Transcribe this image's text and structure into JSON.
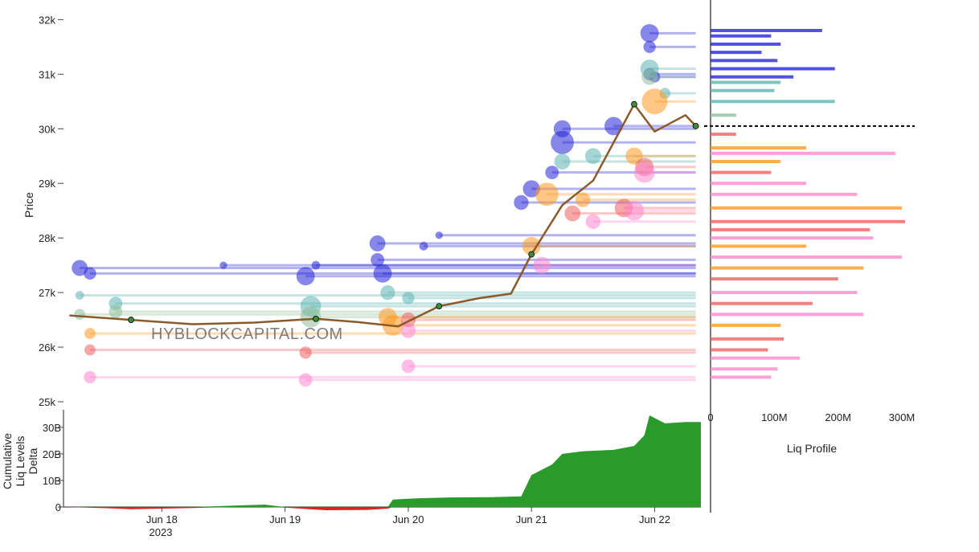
{
  "watermark": "HYBLOCKCAPITAL.COM",
  "colors": {
    "high_leverage_short": "#2626d9",
    "mid_leverage_short": "#5fb3b3",
    "low_leverage_short": "#8fbf9a",
    "low_leverage_long": "#ff9a1f",
    "mid_leverage_long": "#f06060",
    "high_leverage_long": "#ff88d0",
    "cumulative_positive": "#2a9a2a",
    "cumulative_negative": "#e02020",
    "price_line": "#8b5a2b",
    "current_price_marker": "#000000"
  },
  "chart_data": [
    {
      "type": "scatter",
      "ylabel": "Price",
      "xlim": [
        "2023-06-17 05:00",
        "2023-06-22 09:00"
      ],
      "ylim": [
        25000,
        32300
      ],
      "y_ticks": [
        "25k",
        "26k",
        "27k",
        "28k",
        "29k",
        "30k",
        "31k",
        "32k"
      ],
      "y_tick_values": [
        25000,
        26000,
        27000,
        28000,
        29000,
        30000,
        31000,
        32000
      ],
      "price_series": {
        "x": [
          "2023-06-17 06:00",
          "2023-06-17 18:00",
          "2023-06-18 06:00",
          "2023-06-18 18:00",
          "2023-06-19 06:00",
          "2023-06-19 14:00",
          "2023-06-19 22:00",
          "2023-06-20 06:00",
          "2023-06-20 14:00",
          "2023-06-20 20:00",
          "2023-06-21 00:00",
          "2023-06-21 06:00",
          "2023-06-21 12:00",
          "2023-06-21 20:00",
          "2023-06-22 00:00",
          "2023-06-22 06:00",
          "2023-06-22 08:00"
        ],
        "y": [
          26580,
          26500,
          26420,
          26450,
          26520,
          26460,
          26380,
          26750,
          26900,
          26980,
          27700,
          28600,
          29050,
          30450,
          29950,
          30250,
          30050
        ]
      },
      "current_price": 30050,
      "liquidation_levels": [
        {
          "group": "high_leverage_short",
          "x_start": "2023-06-17 08:00",
          "price": 27450,
          "size": 10
        },
        {
          "group": "high_leverage_short",
          "x_start": "2023-06-17 10:00",
          "price": 27350,
          "size": 7
        },
        {
          "group": "high_leverage_short",
          "x_start": "2023-06-19 04:00",
          "price": 27300,
          "size": 12
        },
        {
          "group": "high_leverage_short",
          "x_start": "2023-06-19 06:00",
          "price": 27500,
          "size": 4
        },
        {
          "group": "high_leverage_short",
          "x_start": "2023-06-18 12:00",
          "price": 27500,
          "size": 3
        },
        {
          "group": "high_leverage_short",
          "x_start": "2023-06-19 18:00",
          "price": 27900,
          "size": 10
        },
        {
          "group": "high_leverage_short",
          "x_start": "2023-06-19 18:00",
          "price": 27600,
          "size": 8
        },
        {
          "group": "high_leverage_short",
          "x_start": "2023-06-19 19:00",
          "price": 27350,
          "size": 12
        },
        {
          "group": "high_leverage_short",
          "x_start": "2023-06-20 06:00",
          "price": 28050,
          "size": 3
        },
        {
          "group": "high_leverage_short",
          "x_start": "2023-06-20 03:00",
          "price": 27850,
          "size": 4
        },
        {
          "group": "high_leverage_short",
          "x_start": "2023-06-20 22:00",
          "price": 28650,
          "size": 9
        },
        {
          "group": "high_leverage_short",
          "x_start": "2023-06-21 00:00",
          "price": 28900,
          "size": 11
        },
        {
          "group": "high_leverage_short",
          "x_start": "2023-06-21 04:00",
          "price": 29200,
          "size": 8
        },
        {
          "group": "high_leverage_short",
          "x_start": "2023-06-21 06:00",
          "price": 30000,
          "size": 11
        },
        {
          "group": "high_leverage_short",
          "x_start": "2023-06-21 06:00",
          "price": 29750,
          "size": 16
        },
        {
          "group": "high_leverage_short",
          "x_start": "2023-06-21 16:00",
          "price": 30050,
          "size": 12
        },
        {
          "group": "high_leverage_short",
          "x_start": "2023-06-21 23:00",
          "price": 31750,
          "size": 12
        },
        {
          "group": "high_leverage_short",
          "x_start": "2023-06-21 23:00",
          "price": 31500,
          "size": 7
        },
        {
          "group": "high_leverage_short",
          "x_start": "2023-06-21 23:00",
          "price": 31000,
          "size": 7
        },
        {
          "group": "high_leverage_short",
          "x_start": "2023-06-22 00:00",
          "price": 30950,
          "size": 6
        },
        {
          "group": "mid_leverage_short",
          "x_start": "2023-06-17 08:00",
          "price": 26950,
          "size": 4
        },
        {
          "group": "mid_leverage_short",
          "x_start": "2023-06-17 15:00",
          "price": 26800,
          "size": 8
        },
        {
          "group": "mid_leverage_short",
          "x_start": "2023-06-19 05:00",
          "price": 26750,
          "size": 14
        },
        {
          "group": "mid_leverage_short",
          "x_start": "2023-06-19 20:00",
          "price": 27000,
          "size": 9
        },
        {
          "group": "mid_leverage_short",
          "x_start": "2023-06-20 00:00",
          "price": 26900,
          "size": 7
        },
        {
          "group": "mid_leverage_short",
          "x_start": "2023-06-21 06:00",
          "price": 29400,
          "size": 10
        },
        {
          "group": "mid_leverage_short",
          "x_start": "2023-06-21 12:00",
          "price": 29500,
          "size": 10
        },
        {
          "group": "mid_leverage_short",
          "x_start": "2023-06-21 23:00",
          "price": 31100,
          "size": 12
        },
        {
          "group": "mid_leverage_short",
          "x_start": "2023-06-22 02:00",
          "price": 30650,
          "size": 6
        },
        {
          "group": "low_leverage_short",
          "x_start": "2023-06-17 08:00",
          "price": 26600,
          "size": 6
        },
        {
          "group": "low_leverage_short",
          "x_start": "2023-06-17 15:00",
          "price": 26650,
          "size": 8
        },
        {
          "group": "low_leverage_short",
          "x_start": "2023-06-19 05:00",
          "price": 26550,
          "size": 14
        },
        {
          "group": "low_leverage_short",
          "x_start": "2023-06-21 23:00",
          "price": 30950,
          "size": 10
        },
        {
          "group": "low_leverage_long",
          "x_start": "2023-06-17 10:00",
          "price": 26250,
          "size": 6
        },
        {
          "group": "low_leverage_long",
          "x_start": "2023-06-19 20:00",
          "price": 26550,
          "size": 12
        },
        {
          "group": "low_leverage_long",
          "x_start": "2023-06-19 21:00",
          "price": 26400,
          "size": 14
        },
        {
          "group": "low_leverage_long",
          "x_start": "2023-06-21 00:00",
          "price": 27850,
          "size": 12
        },
        {
          "group": "low_leverage_long",
          "x_start": "2023-06-21 03:00",
          "price": 28800,
          "size": 16
        },
        {
          "group": "low_leverage_long",
          "x_start": "2023-06-21 10:00",
          "price": 28700,
          "size": 9
        },
        {
          "group": "low_leverage_long",
          "x_start": "2023-06-21 20:00",
          "price": 29500,
          "size": 11
        },
        {
          "group": "low_leverage_long",
          "x_start": "2023-06-22 00:00",
          "price": 30500,
          "size": 18
        },
        {
          "group": "mid_leverage_long",
          "x_start": "2023-06-17 10:00",
          "price": 25950,
          "size": 6
        },
        {
          "group": "mid_leverage_long",
          "x_start": "2023-06-19 04:00",
          "price": 25900,
          "size": 7
        },
        {
          "group": "mid_leverage_long",
          "x_start": "2023-06-20 00:00",
          "price": 26500,
          "size": 9
        },
        {
          "group": "mid_leverage_long",
          "x_start": "2023-06-21 08:00",
          "price": 28450,
          "size": 10
        },
        {
          "group": "mid_leverage_long",
          "x_start": "2023-06-21 18:00",
          "price": 28550,
          "size": 12
        },
        {
          "group": "mid_leverage_long",
          "x_start": "2023-06-21 22:00",
          "price": 29300,
          "size": 12
        },
        {
          "group": "high_leverage_long",
          "x_start": "2023-06-17 10:00",
          "price": 25450,
          "size": 7
        },
        {
          "group": "high_leverage_long",
          "x_start": "2023-06-19 04:00",
          "price": 25400,
          "size": 8
        },
        {
          "group": "high_leverage_long",
          "x_start": "2023-06-20 00:00",
          "price": 25650,
          "size": 8
        },
        {
          "group": "high_leverage_long",
          "x_start": "2023-06-20 00:00",
          "price": 26300,
          "size": 9
        },
        {
          "group": "high_leverage_long",
          "x_start": "2023-06-21 02:00",
          "price": 27500,
          "size": 11
        },
        {
          "group": "high_leverage_long",
          "x_start": "2023-06-21 12:00",
          "price": 28300,
          "size": 9
        },
        {
          "group": "high_leverage_long",
          "x_start": "2023-06-21 20:00",
          "price": 28500,
          "size": 13
        },
        {
          "group": "high_leverage_long",
          "x_start": "2023-06-21 22:00",
          "price": 29200,
          "size": 14
        }
      ]
    },
    {
      "type": "area",
      "ylabel": "Cumulative Liq Levels Delta",
      "ylim": [
        0,
        36000000000
      ],
      "y_ticks": [
        "0",
        "10B",
        "20B",
        "30B"
      ],
      "y_tick_values": [
        0,
        10000000000,
        20000000000,
        30000000000
      ],
      "x_ticks": [
        "Jun 18",
        "Jun 19",
        "Jun 20",
        "Jun 21",
        "Jun 22"
      ],
      "x_tick_values": [
        "2023-06-18",
        "2023-06-19",
        "2023-06-20",
        "2023-06-21",
        "2023-06-22"
      ],
      "x_year_label": "2023",
      "x": [
        "2023-06-17 05:00",
        "2023-06-17 12:00",
        "2023-06-17 18:00",
        "2023-06-18 06:00",
        "2023-06-18 14:00",
        "2023-06-18 20:00",
        "2023-06-19 00:00",
        "2023-06-19 08:00",
        "2023-06-19 16:00",
        "2023-06-19 20:00",
        "2023-06-19 21:00",
        "2023-06-20 02:00",
        "2023-06-20 08:00",
        "2023-06-20 16:00",
        "2023-06-20 22:00",
        "2023-06-21 00:00",
        "2023-06-21 04:00",
        "2023-06-21 06:00",
        "2023-06-21 10:00",
        "2023-06-21 16:00",
        "2023-06-21 20:00",
        "2023-06-21 22:00",
        "2023-06-21 23:00",
        "2023-06-22 02:00",
        "2023-06-22 06:00",
        "2023-06-22 09:00"
      ],
      "values": [
        0,
        -300000000,
        -700000000,
        -300000000,
        500000000,
        900000000,
        -200000000,
        -1000000000,
        -900000000,
        -500000000,
        2800000000,
        3300000000,
        3600000000,
        3700000000,
        4000000000,
        12000000000,
        16000000000,
        20000000000,
        21000000000,
        21500000000,
        23000000000,
        27000000000,
        34500000000,
        31500000000,
        32000000000,
        32000000000
      ]
    },
    {
      "type": "bar",
      "orientation": "horizontal",
      "xlabel": "Liq Profile",
      "xlim": [
        0,
        320000000
      ],
      "x_ticks": [
        "0",
        "100M",
        "200M",
        "300M"
      ],
      "x_tick_values": [
        0,
        100000000,
        200000000,
        300000000
      ],
      "ylim": [
        25000,
        32300
      ],
      "bars": [
        {
          "group": "high_leverage_short",
          "price": 31800,
          "value": 175000000
        },
        {
          "group": "high_leverage_short",
          "price": 31700,
          "value": 95000000
        },
        {
          "group": "high_leverage_short",
          "price": 31550,
          "value": 110000000
        },
        {
          "group": "high_leverage_short",
          "price": 31400,
          "value": 80000000
        },
        {
          "group": "high_leverage_short",
          "price": 31250,
          "value": 105000000
        },
        {
          "group": "high_leverage_short",
          "price": 31100,
          "value": 195000000
        },
        {
          "group": "high_leverage_short",
          "price": 30950,
          "value": 130000000
        },
        {
          "group": "mid_leverage_short",
          "price": 30850,
          "value": 110000000
        },
        {
          "group": "mid_leverage_short",
          "price": 30700,
          "value": 100000000
        },
        {
          "group": "mid_leverage_short",
          "price": 30500,
          "value": 195000000
        },
        {
          "group": "low_leverage_short",
          "price": 30250,
          "value": 40000000
        },
        {
          "group": "mid_leverage_long",
          "price": 29900,
          "value": 40000000
        },
        {
          "group": "low_leverage_long",
          "price": 29650,
          "value": 150000000
        },
        {
          "group": "high_leverage_long",
          "price": 29550,
          "value": 290000000
        },
        {
          "group": "low_leverage_long",
          "price": 29400,
          "value": 110000000
        },
        {
          "group": "mid_leverage_long",
          "price": 29200,
          "value": 95000000
        },
        {
          "group": "high_leverage_long",
          "price": 29000,
          "value": 150000000
        },
        {
          "group": "high_leverage_long",
          "price": 28800,
          "value": 230000000
        },
        {
          "group": "low_leverage_long",
          "price": 28550,
          "value": 300000000
        },
        {
          "group": "mid_leverage_long",
          "price": 28300,
          "value": 305000000
        },
        {
          "group": "mid_leverage_long",
          "price": 28150,
          "value": 250000000
        },
        {
          "group": "high_leverage_long",
          "price": 28000,
          "value": 255000000
        },
        {
          "group": "low_leverage_long",
          "price": 27850,
          "value": 150000000
        },
        {
          "group": "high_leverage_long",
          "price": 27650,
          "value": 300000000
        },
        {
          "group": "low_leverage_long",
          "price": 27450,
          "value": 240000000
        },
        {
          "group": "mid_leverage_long",
          "price": 27250,
          "value": 200000000
        },
        {
          "group": "high_leverage_long",
          "price": 27000,
          "value": 230000000
        },
        {
          "group": "mid_leverage_long",
          "price": 26800,
          "value": 160000000
        },
        {
          "group": "high_leverage_long",
          "price": 26600,
          "value": 240000000
        },
        {
          "group": "low_leverage_long",
          "price": 26400,
          "value": 110000000
        },
        {
          "group": "mid_leverage_long",
          "price": 26150,
          "value": 115000000
        },
        {
          "group": "mid_leverage_long",
          "price": 25950,
          "value": 90000000
        },
        {
          "group": "high_leverage_long",
          "price": 25800,
          "value": 140000000
        },
        {
          "group": "high_leverage_long",
          "price": 25600,
          "value": 105000000
        },
        {
          "group": "high_leverage_long",
          "price": 25450,
          "value": 95000000
        }
      ]
    }
  ]
}
